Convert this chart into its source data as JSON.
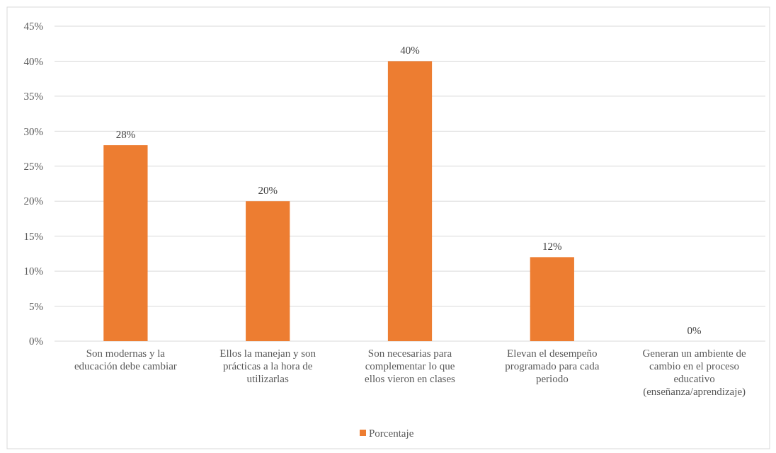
{
  "chart_data": {
    "type": "bar",
    "categories": [
      "Son modernas y la educación debe cambiar",
      "Ellos la manejan y son prácticas a la hora de utilizarlas",
      "Son necesarias para complementar lo que ellos vieron en clases",
      "Elevan el desempeño programado para cada periodo",
      "Generan un ambiente de cambio en el proceso educativo (enseñanza/aprendizaje)"
    ],
    "series": [
      {
        "name": "Porcentaje",
        "color": "#ed7d31",
        "values": [
          28,
          20,
          40,
          12,
          0
        ]
      }
    ],
    "ylim": [
      0,
      45
    ],
    "yticks": [
      {
        "value": 0,
        "label": "0%"
      },
      {
        "value": 5,
        "label": "5%"
      },
      {
        "value": 10,
        "label": "10%"
      },
      {
        "value": 15,
        "label": "15%"
      },
      {
        "value": 20,
        "label": "20%"
      },
      {
        "value": 25,
        "label": "25%"
      },
      {
        "value": 30,
        "label": "30%"
      },
      {
        "value": 35,
        "label": "35%"
      },
      {
        "value": 40,
        "label": "40%"
      },
      {
        "value": 45,
        "label": "45%"
      }
    ],
    "value_labels": [
      "28%",
      "20%",
      "40%",
      "12%",
      "0%"
    ],
    "grid": "y",
    "legend": "bottom"
  }
}
